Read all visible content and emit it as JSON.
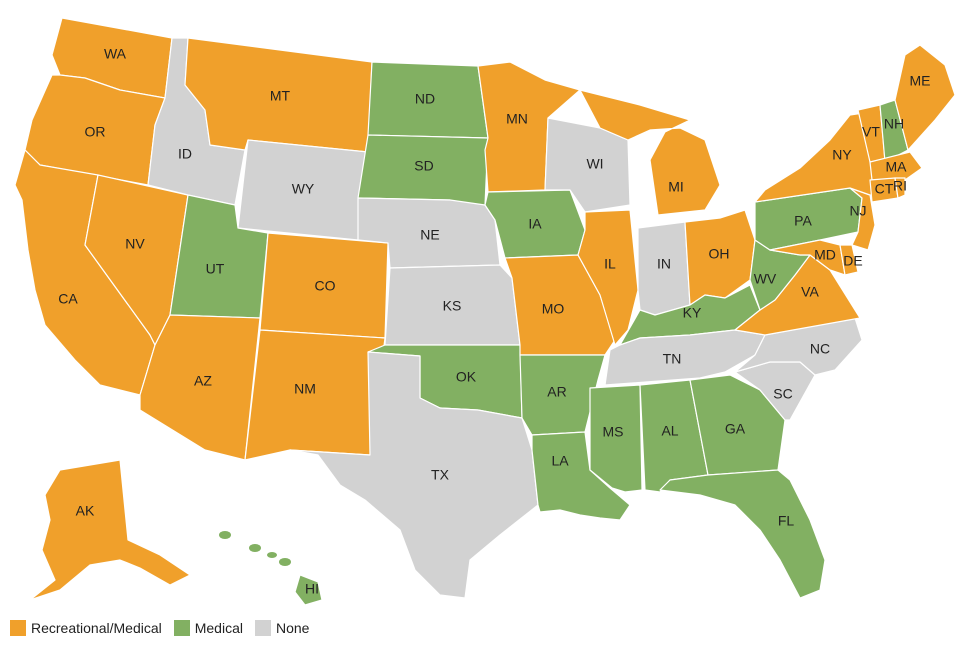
{
  "colors": {
    "recreational": "#f0a02b",
    "medical": "#82b062",
    "none": "#d2d2d2"
  },
  "legend": [
    {
      "key": "recreational",
      "label": "Recreational/Medical"
    },
    {
      "key": "medical",
      "label": "Medical"
    },
    {
      "key": "none",
      "label": "None"
    }
  ],
  "states": [
    {
      "code": "WA",
      "status": "recreational"
    },
    {
      "code": "OR",
      "status": "recreational"
    },
    {
      "code": "CA",
      "status": "recreational"
    },
    {
      "code": "NV",
      "status": "recreational"
    },
    {
      "code": "ID",
      "status": "none"
    },
    {
      "code": "MT",
      "status": "recreational"
    },
    {
      "code": "WY",
      "status": "none"
    },
    {
      "code": "UT",
      "status": "medical"
    },
    {
      "code": "AZ",
      "status": "recreational"
    },
    {
      "code": "CO",
      "status": "recreational"
    },
    {
      "code": "NM",
      "status": "recreational"
    },
    {
      "code": "ND",
      "status": "medical"
    },
    {
      "code": "SD",
      "status": "medical"
    },
    {
      "code": "NE",
      "status": "none"
    },
    {
      "code": "KS",
      "status": "none"
    },
    {
      "code": "OK",
      "status": "medical"
    },
    {
      "code": "TX",
      "status": "none"
    },
    {
      "code": "MN",
      "status": "recreational"
    },
    {
      "code": "IA",
      "status": "medical"
    },
    {
      "code": "MO",
      "status": "recreational"
    },
    {
      "code": "AR",
      "status": "medical"
    },
    {
      "code": "LA",
      "status": "medical"
    },
    {
      "code": "WI",
      "status": "none"
    },
    {
      "code": "IL",
      "status": "recreational"
    },
    {
      "code": "MI",
      "status": "recreational"
    },
    {
      "code": "IN",
      "status": "none"
    },
    {
      "code": "OH",
      "status": "recreational"
    },
    {
      "code": "KY",
      "status": "medical"
    },
    {
      "code": "TN",
      "status": "none"
    },
    {
      "code": "MS",
      "status": "medical"
    },
    {
      "code": "AL",
      "status": "medical"
    },
    {
      "code": "GA",
      "status": "medical"
    },
    {
      "code": "FL",
      "status": "medical"
    },
    {
      "code": "SC",
      "status": "none"
    },
    {
      "code": "NC",
      "status": "none"
    },
    {
      "code": "VA",
      "status": "recreational"
    },
    {
      "code": "WV",
      "status": "medical"
    },
    {
      "code": "PA",
      "status": "medical"
    },
    {
      "code": "MD",
      "status": "recreational"
    },
    {
      "code": "DE",
      "status": "recreational"
    },
    {
      "code": "NJ",
      "status": "recreational"
    },
    {
      "code": "NY",
      "status": "recreational"
    },
    {
      "code": "VT",
      "status": "recreational"
    },
    {
      "code": "NH",
      "status": "medical"
    },
    {
      "code": "MA",
      "status": "recreational"
    },
    {
      "code": "CT",
      "status": "recreational"
    },
    {
      "code": "RI",
      "status": "recreational"
    },
    {
      "code": "ME",
      "status": "recreational"
    },
    {
      "code": "AK",
      "status": "recreational"
    },
    {
      "code": "HI",
      "status": "medical"
    }
  ]
}
